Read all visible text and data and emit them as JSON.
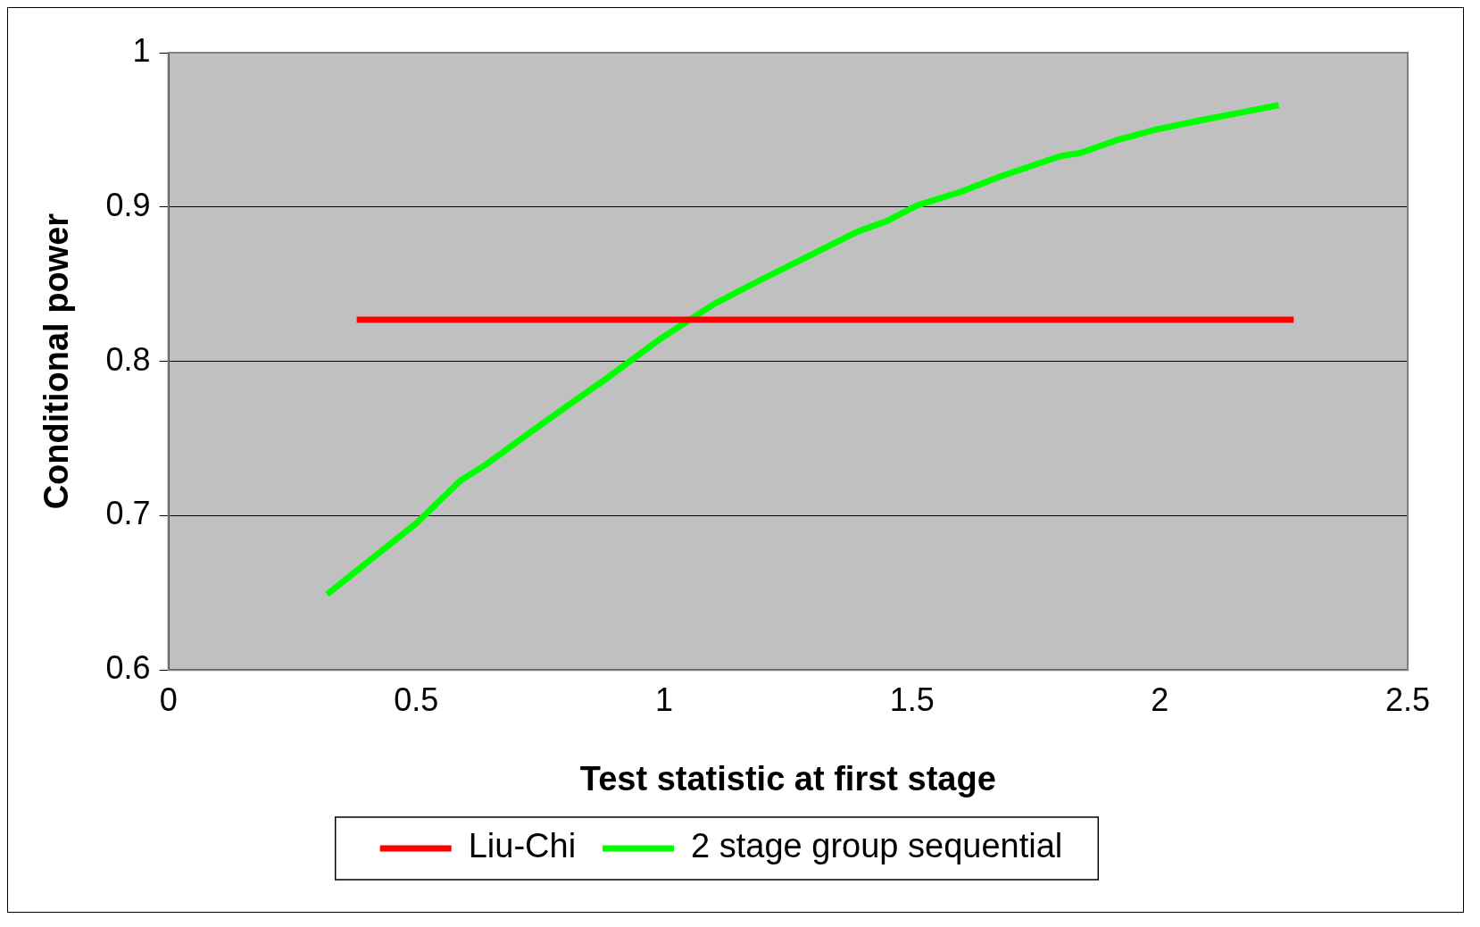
{
  "chart_data": {
    "type": "line",
    "xlabel": "Test statistic at first stage",
    "ylabel": "Conditional power",
    "xlim": [
      0,
      2.5
    ],
    "xticks": [
      0,
      0.5,
      1,
      1.5,
      2,
      2.5
    ],
    "ylim": [
      0.6,
      1
    ],
    "yticks": [
      0.6,
      0.7,
      0.8,
      0.9,
      1
    ],
    "grid": "y",
    "legend": "bottom",
    "marker": "none",
    "line_style": "solid",
    "series": [
      {
        "name": "Liu-Chi",
        "color": "#ff0000",
        "x": [
          0.38,
          2.27
        ],
        "values": [
          0.827,
          0.827
        ]
      },
      {
        "name": "2 stage group sequential",
        "color": "#00ff00",
        "x": [
          0.32,
          0.5,
          0.59,
          0.64,
          0.73,
          0.8,
          0.88,
          0.99,
          1.1,
          1.19,
          1.29,
          1.39,
          1.45,
          1.51,
          1.6,
          1.68,
          1.8,
          1.84,
          1.91,
          1.99,
          2.08,
          2.16,
          2.24
        ],
        "values": [
          0.649,
          0.695,
          0.723,
          0.733,
          0.754,
          0.77,
          0.788,
          0.814,
          0.837,
          0.852,
          0.868,
          0.884,
          0.891,
          0.901,
          0.91,
          0.92,
          0.933,
          0.935,
          0.943,
          0.95,
          0.956,
          0.961,
          0.966
        ]
      }
    ]
  }
}
